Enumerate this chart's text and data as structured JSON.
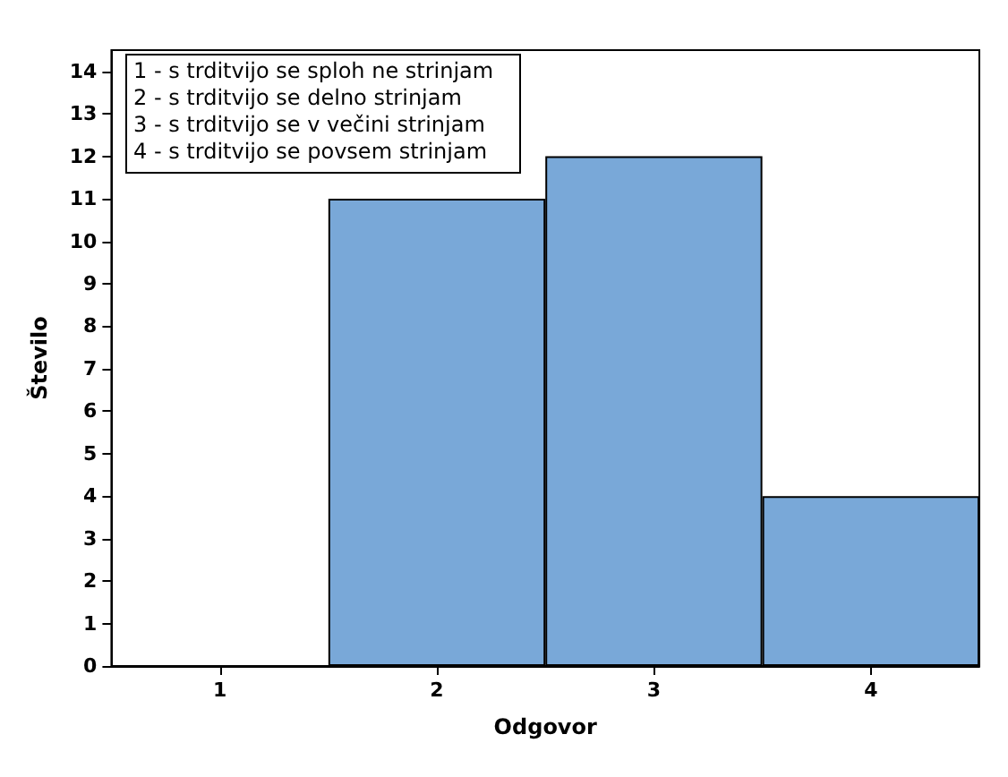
{
  "chart_data": {
    "type": "bar",
    "xlabel": "Odgovor",
    "ylabel": "Število",
    "categories": [
      "1",
      "2",
      "3",
      "4"
    ],
    "values": [
      0,
      11,
      12,
      4
    ],
    "color": "#79a8d8",
    "ylim": [
      0,
      14.5
    ],
    "yticks": [
      0,
      1,
      2,
      3,
      4,
      5,
      6,
      7,
      8,
      9,
      10,
      11,
      12,
      13,
      14
    ],
    "grid": false,
    "annotations": [
      "1 - s trditvijo se sploh ne strinjam",
      "2 - s trditvijo se delno strinjam",
      "3 - s trditvijo se v večini strinjam",
      "4 - s trditvijo se povsem strinjam"
    ]
  }
}
